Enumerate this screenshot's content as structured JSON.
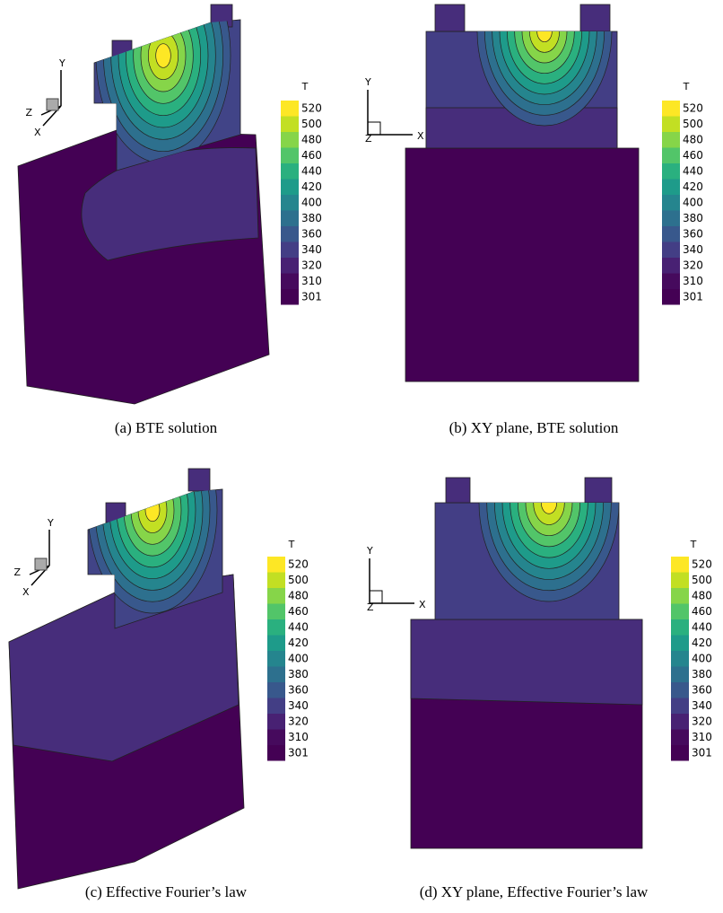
{
  "colorbar": {
    "title": "T",
    "levels": [
      "520",
      "500",
      "480",
      "460",
      "440",
      "420",
      "400",
      "380",
      "360",
      "340",
      "320",
      "310",
      "301"
    ],
    "colors": [
      "#fde725",
      "#c2df23",
      "#86d549",
      "#52c569",
      "#2ab07f",
      "#1e9b8a",
      "#25858e",
      "#2d708e",
      "#38588c",
      "#433e85",
      "#482173",
      "#460a5d",
      "#440154"
    ]
  },
  "axes": {
    "x": "X",
    "y": "Y",
    "z": "Z"
  },
  "panels": [
    {
      "caption": "(a) BTE solution"
    },
    {
      "caption": "(b) XY plane, BTE solution"
    },
    {
      "caption": "(c) Effective Fourier’s law"
    },
    {
      "caption": "(d) XY plane, Effective Fourier’s law"
    }
  ]
}
